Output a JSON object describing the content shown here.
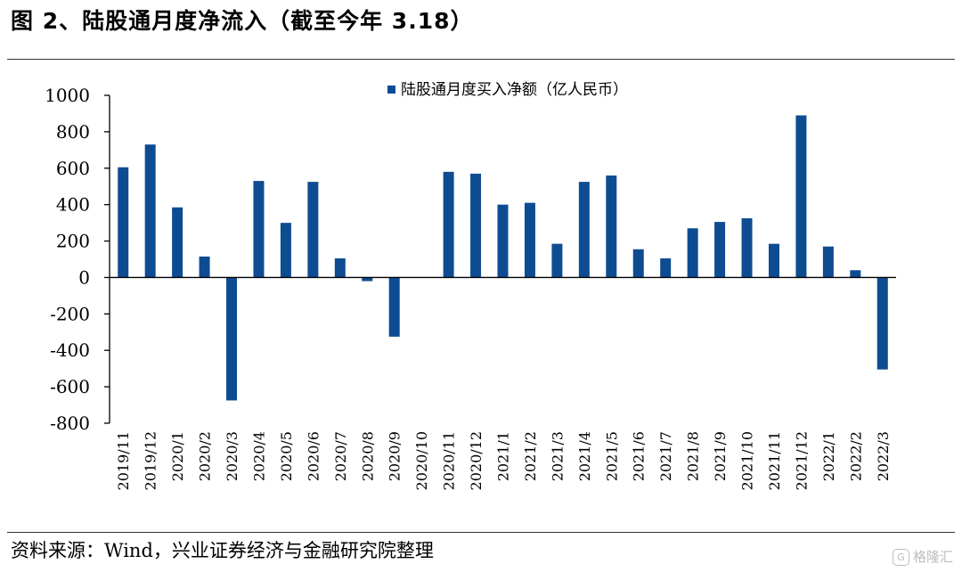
{
  "figure": {
    "title": "图 2、陆股通月度净流入（截至今年 3.18）",
    "source": "资料来源：Wind，兴业证券经济与金融研究院整理",
    "watermark": "格隆汇",
    "watermark_logo": "G"
  },
  "colors": {
    "bar": "#0e4c92",
    "axis": "#000000",
    "rule": "#333333"
  },
  "chart_data": {
    "type": "bar",
    "title": "",
    "xlabel": "",
    "ylabel": "",
    "legend_position": "top-center",
    "grid": false,
    "ylim": [
      -800,
      1000
    ],
    "yticks": [
      1000,
      800,
      600,
      400,
      200,
      0,
      -200,
      -400,
      -600,
      -800
    ],
    "categories": [
      "2019/11",
      "2019/12",
      "2020/1",
      "2020/2",
      "2020/3",
      "2020/4",
      "2020/5",
      "2020/6",
      "2020/7",
      "2020/8",
      "2020/9",
      "2020/10",
      "2020/11",
      "2020/12",
      "2021/1",
      "2021/2",
      "2021/3",
      "2021/4",
      "2021/5",
      "2021/6",
      "2021/7",
      "2021/8",
      "2021/9",
      "2021/10",
      "2021/11",
      "2021/12",
      "2022/1",
      "2022/2",
      "2022/3"
    ],
    "series": [
      {
        "name": "陆股通月度买入净额（亿人民币）",
        "values": [
          605,
          730,
          385,
          115,
          -675,
          530,
          300,
          525,
          105,
          -20,
          -325,
          0,
          580,
          570,
          400,
          410,
          185,
          525,
          560,
          155,
          105,
          270,
          305,
          325,
          185,
          890,
          170,
          40,
          -505
        ]
      }
    ]
  }
}
